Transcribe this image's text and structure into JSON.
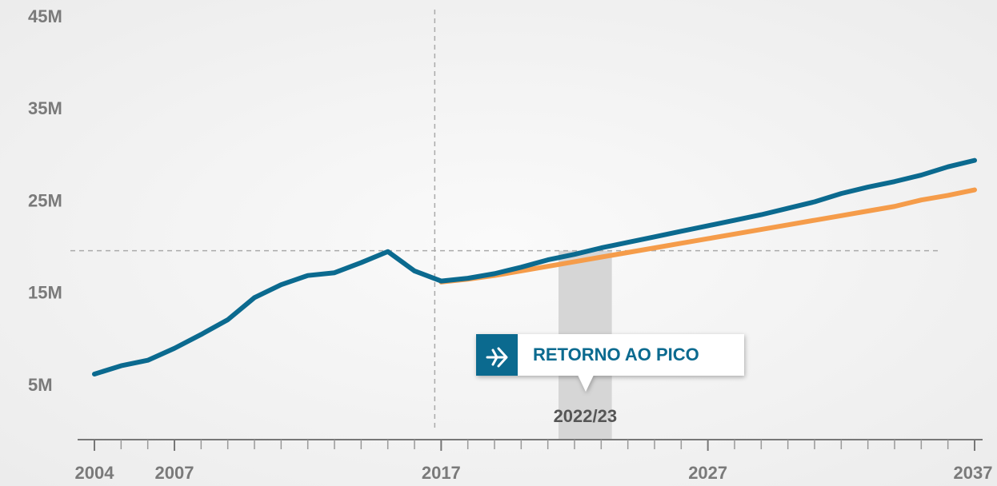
{
  "chart_data": {
    "type": "line",
    "x": [
      2004,
      2005,
      2006,
      2007,
      2008,
      2009,
      2010,
      2011,
      2012,
      2013,
      2014,
      2015,
      2016,
      2017,
      2018,
      2019,
      2020,
      2021,
      2022,
      2023,
      2024,
      2025,
      2026,
      2027,
      2028,
      2029,
      2030,
      2031,
      2032,
      2033,
      2034,
      2035,
      2036,
      2037
    ],
    "series": [
      {
        "color": "#0b6a8f",
        "values": [
          6.3,
          7.2,
          7.8,
          9.1,
          10.6,
          12.2,
          14.6,
          16.0,
          17.0,
          17.3,
          18.4,
          19.6,
          17.5,
          16.4,
          16.7,
          17.2,
          17.9,
          18.7,
          19.3,
          20.0,
          20.6,
          21.2,
          21.8,
          22.4,
          23.0,
          23.6,
          24.3,
          25.0,
          25.9,
          26.6,
          27.2,
          27.9,
          28.8,
          29.5
        ]
      },
      {
        "color": "#f59c4a",
        "values": [
          null,
          null,
          null,
          null,
          null,
          null,
          null,
          null,
          null,
          null,
          null,
          null,
          null,
          16.3,
          16.6,
          17.0,
          17.5,
          18.0,
          18.5,
          19.0,
          19.5,
          20.0,
          20.5,
          21.0,
          21.5,
          22.0,
          22.5,
          23.0,
          23.5,
          24.0,
          24.5,
          25.2,
          25.7,
          26.3
        ]
      }
    ],
    "xlim": [
      2004,
      2037
    ],
    "xticks": [
      2004,
      2007,
      2017,
      2027,
      2037
    ],
    "ylim": [
      0,
      45
    ],
    "yticks": [
      {
        "value": 5,
        "label": "5M"
      },
      {
        "value": 15,
        "label": "15M"
      },
      {
        "value": 25,
        "label": "25M"
      },
      {
        "value": 35,
        "label": "35M"
      },
      {
        "value": 45,
        "label": "45M"
      }
    ],
    "reference_y": 19.7,
    "reference_x": 2017,
    "band": [
      2021.4,
      2023.4
    ],
    "band_label": "2022/23",
    "callout": "RETORNO AO PICO"
  }
}
